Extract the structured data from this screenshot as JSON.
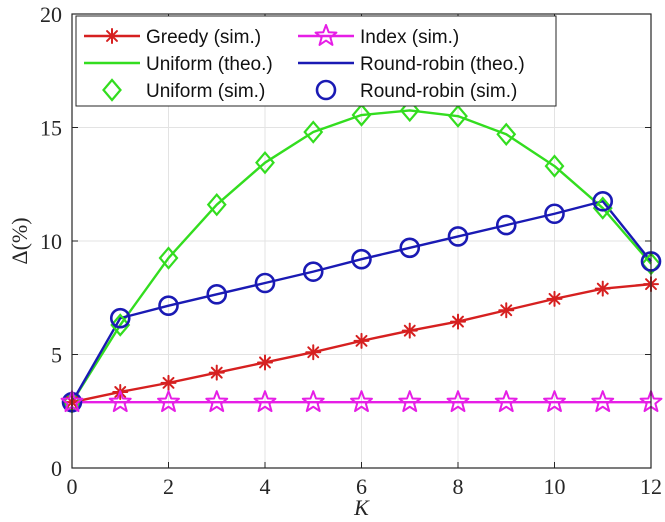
{
  "chart_data": {
    "type": "line",
    "title": "",
    "xlabel": "K",
    "ylabel": "Δ(%)",
    "xlim": [
      0,
      12
    ],
    "ylim": [
      0,
      20
    ],
    "xticks": [
      0,
      2,
      4,
      6,
      8,
      10,
      12
    ],
    "yticks": [
      0,
      5,
      10,
      15,
      20
    ],
    "grid": true,
    "legend_position": "top",
    "x": [
      0,
      1,
      2,
      3,
      4,
      5,
      6,
      7,
      8,
      9,
      10,
      11,
      12
    ],
    "series": [
      {
        "name": "Greedy (sim.)",
        "color": "#d62020",
        "line": true,
        "marker": "asterisk",
        "values": [
          2.9,
          3.35,
          3.75,
          4.2,
          4.65,
          5.1,
          5.6,
          6.05,
          6.45,
          6.95,
          7.45,
          7.9,
          8.1
        ]
      },
      {
        "name": "Index (sim.)",
        "color": "#e61ee6",
        "line": true,
        "marker": "star",
        "values": [
          2.9,
          2.9,
          2.9,
          2.9,
          2.9,
          2.9,
          2.9,
          2.9,
          2.9,
          2.9,
          2.9,
          2.9,
          2.9
        ]
      },
      {
        "name": "Uniform (theo.)",
        "color": "#33dd1f",
        "line": true,
        "marker": "none",
        "values": [
          2.9,
          6.3,
          9.25,
          11.6,
          13.45,
          14.8,
          15.55,
          15.75,
          15.5,
          14.7,
          13.3,
          11.45,
          9.0
        ]
      },
      {
        "name": "Round-robin (theo.)",
        "color": "#1a1ab4",
        "line": true,
        "marker": "none",
        "values": [
          2.9,
          6.6,
          7.15,
          7.65,
          8.15,
          8.65,
          9.2,
          9.7,
          10.2,
          10.7,
          11.2,
          11.75,
          9.1
        ]
      },
      {
        "name": "Uniform (sim.)",
        "color": "#33dd1f",
        "line": false,
        "marker": "diamond",
        "values": [
          2.9,
          6.3,
          9.25,
          11.6,
          13.45,
          14.8,
          15.55,
          15.75,
          15.5,
          14.7,
          13.3,
          11.45,
          9.0
        ]
      },
      {
        "name": "Round-robin (sim.)",
        "color": "#1a1ab4",
        "line": false,
        "marker": "circle",
        "values": [
          2.9,
          6.6,
          7.15,
          7.65,
          8.15,
          8.65,
          9.2,
          9.7,
          10.2,
          10.7,
          11.2,
          11.75,
          9.1
        ]
      }
    ],
    "legend_order": [
      0,
      1,
      2,
      3,
      4,
      5
    ]
  }
}
